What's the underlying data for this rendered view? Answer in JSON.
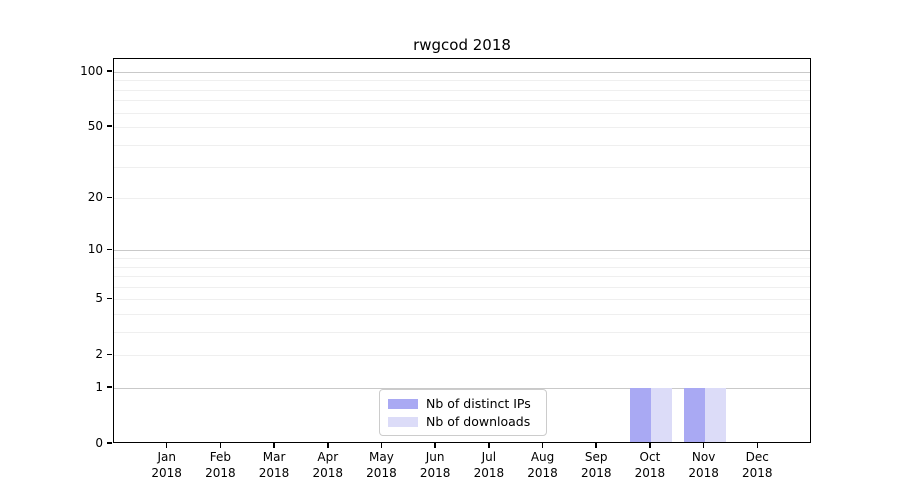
{
  "chart_data": {
    "type": "bar",
    "title": "rwgcod 2018",
    "categories": [
      "Jan",
      "Feb",
      "Mar",
      "Apr",
      "May",
      "Jun",
      "Jul",
      "Aug",
      "Sep",
      "Oct",
      "Nov",
      "Dec"
    ],
    "year_label": "2018",
    "series": [
      {
        "name": "Nb of distinct IPs",
        "color": "#a9a9f3",
        "values": [
          0,
          0,
          0,
          0,
          0,
          0,
          0,
          0,
          0,
          1,
          1,
          0
        ]
      },
      {
        "name": "Nb of downloads",
        "color": "#dcdcf8",
        "values": [
          0,
          0,
          0,
          0,
          0,
          0,
          0,
          0,
          0,
          1,
          1,
          0
        ]
      }
    ],
    "y_axis": {
      "scale": "log1p",
      "range": [
        0,
        100
      ],
      "tick_values": [
        0,
        1,
        2,
        5,
        10,
        20,
        50,
        100
      ],
      "tick_labels": [
        "0",
        "1",
        "2",
        "5",
        "10",
        "20",
        "50",
        "100"
      ],
      "major_gridlines": [
        1,
        10,
        100
      ],
      "minor_gridlines": [
        2,
        3,
        4,
        5,
        6,
        7,
        8,
        9,
        20,
        30,
        40,
        50,
        60,
        70,
        80,
        90
      ]
    },
    "legend": {
      "position": "lower center"
    },
    "colors": {
      "bar_distinct_ips": "#a9a9f3",
      "bar_downloads": "#dcdcf8",
      "major_gridline": "#c9c9c9",
      "minor_gridline": "#efefef",
      "axis_border": "#000000",
      "legend_border": "#cccccc",
      "background": "#ffffff"
    }
  }
}
